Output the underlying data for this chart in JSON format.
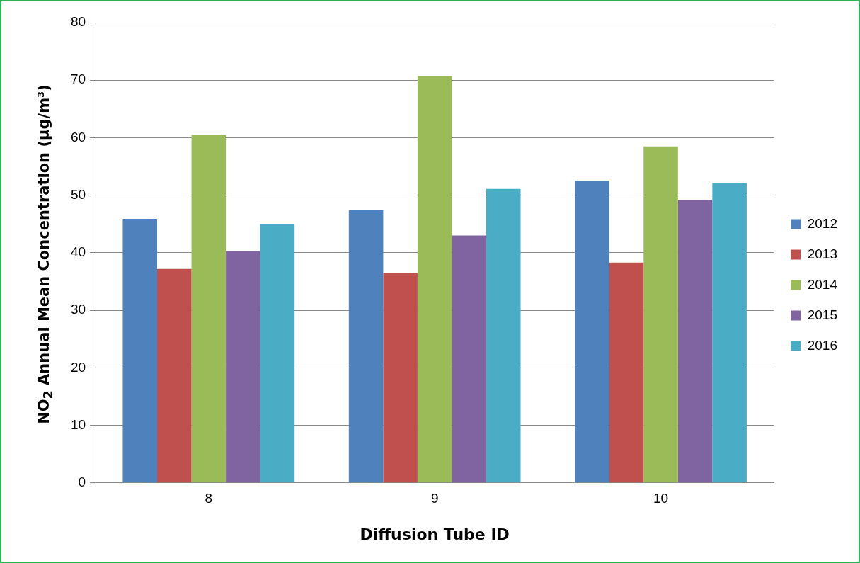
{
  "chart_data": {
    "type": "bar",
    "xlabel": "Diffusion Tube ID",
    "ylabel": "NO$_{2}$ Annual Mean Concentration (µg/m³)",
    "categories": [
      "8",
      "9",
      "10"
    ],
    "series": [
      {
        "name": "2012",
        "color": "#4f81bd",
        "values": [
          45.9,
          47.4,
          52.5
        ]
      },
      {
        "name": "2013",
        "color": "#c0504d",
        "values": [
          37.2,
          36.5,
          38.3
        ]
      },
      {
        "name": "2014",
        "color": "#9bbb59",
        "values": [
          60.5,
          70.7,
          58.5
        ]
      },
      {
        "name": "2015",
        "color": "#8064a2",
        "values": [
          40.3,
          43.0,
          49.2
        ]
      },
      {
        "name": "2016",
        "color": "#4bacc6",
        "values": [
          44.9,
          51.1,
          52.1
        ]
      }
    ],
    "ylim": [
      0,
      80
    ],
    "yticks": [
      0,
      10,
      20,
      30,
      40,
      50,
      60,
      70,
      80
    ],
    "grid": "y",
    "legend": "right"
  }
}
